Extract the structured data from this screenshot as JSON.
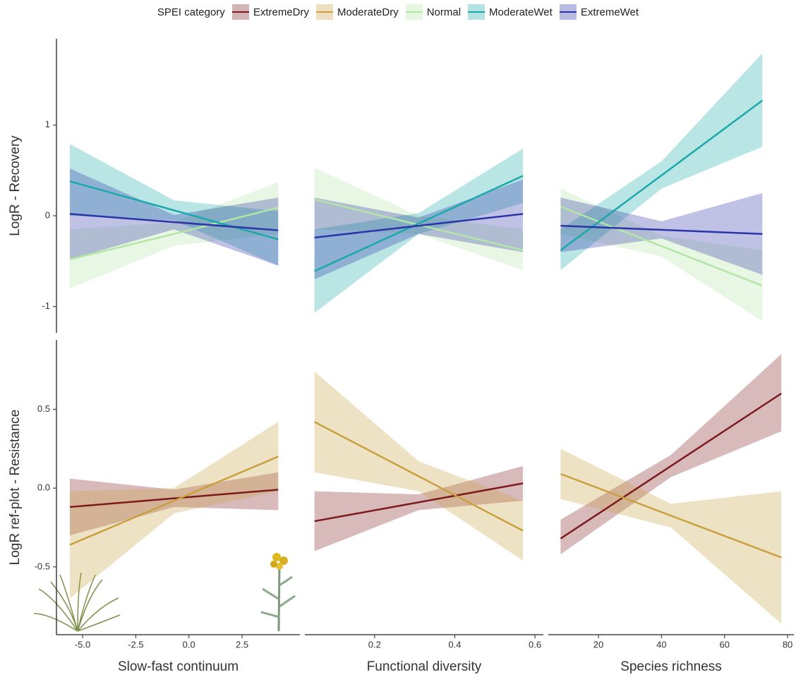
{
  "legend": {
    "title": "SPEI category"
  },
  "chart_data": [
    {
      "type": "line",
      "ylabel": "LogR - Recovery",
      "xlim": [
        -6.23,
        5.22
      ],
      "ylim": [
        -1.29,
        1.95
      ],
      "yticks": [
        -1,
        0,
        1
      ],
      "series": [
        {
          "name": "Normal",
          "color": "#b3e6a6",
          "x": [
            -5.6,
            -0.7,
            4.2
          ],
          "values": [
            -0.48,
            -0.2,
            0.09
          ],
          "lower": [
            -0.8,
            -0.33,
            -0.2
          ],
          "upper": [
            -0.15,
            -0.07,
            0.37
          ]
        },
        {
          "name": "ModerateWet",
          "color": "#1aa9a9",
          "x": [
            -5.6,
            -0.7,
            4.2
          ],
          "values": [
            0.38,
            0.06,
            -0.26
          ],
          "lower": [
            0.0,
            -0.05,
            -0.55
          ],
          "upper": [
            0.79,
            0.17,
            0.05
          ]
        },
        {
          "name": "ExtremeWet",
          "color": "#2b35a8",
          "x": [
            -5.6,
            -0.7,
            4.2
          ],
          "values": [
            0.02,
            -0.07,
            -0.16
          ],
          "lower": [
            -0.48,
            -0.15,
            -0.55
          ],
          "upper": [
            0.52,
            0.01,
            0.2
          ]
        }
      ]
    },
    {
      "type": "line",
      "xlim": [
        0.026,
        0.621
      ],
      "ylim": [
        -1.29,
        1.95
      ],
      "series": [
        {
          "name": "Normal",
          "color": "#b3e6a6",
          "x": [
            0.05,
            0.31,
            0.57
          ],
          "values": [
            0.18,
            -0.1,
            -0.38
          ],
          "lower": [
            -0.15,
            -0.2,
            -0.6
          ],
          "upper": [
            0.53,
            0.0,
            -0.15
          ]
        },
        {
          "name": "ModerateWet",
          "color": "#1aa9a9",
          "x": [
            0.05,
            0.31,
            0.57
          ],
          "values": [
            -0.61,
            -0.085,
            0.44
          ],
          "lower": [
            -1.07,
            -0.2,
            0.14
          ],
          "upper": [
            -0.15,
            0.03,
            0.74
          ]
        },
        {
          "name": "ExtremeWet",
          "color": "#2b35a8",
          "x": [
            0.05,
            0.31,
            0.57
          ],
          "values": [
            -0.24,
            -0.11,
            0.02
          ],
          "lower": [
            -0.7,
            -0.2,
            -0.4
          ],
          "upper": [
            0.2,
            -0.02,
            0.4
          ]
        }
      ]
    },
    {
      "type": "line",
      "xlim": [
        4.1,
        82
      ],
      "ylim": [
        -1.29,
        1.95
      ],
      "series": [
        {
          "name": "Normal",
          "color": "#b3e6a6",
          "x": [
            8,
            40,
            72
          ],
          "values": [
            0.1,
            -0.335,
            -0.77
          ],
          "lower": [
            -0.2,
            -0.45,
            -1.16
          ],
          "upper": [
            0.3,
            -0.22,
            -0.38
          ]
        },
        {
          "name": "ModerateWet",
          "color": "#1aa9a9",
          "x": [
            8,
            40,
            72
          ],
          "values": [
            -0.38,
            0.445,
            1.27
          ],
          "lower": [
            -0.6,
            0.3,
            0.76
          ],
          "upper": [
            -0.15,
            0.6,
            1.79
          ]
        },
        {
          "name": "ExtremeWet",
          "color": "#2b35a8",
          "x": [
            8,
            40,
            72
          ],
          "values": [
            -0.11,
            -0.155,
            -0.2
          ],
          "lower": [
            -0.4,
            -0.25,
            -0.65
          ],
          "upper": [
            0.2,
            -0.06,
            0.25
          ]
        }
      ]
    },
    {
      "type": "line",
      "ylabel": "LogR ref-plot - Resistance",
      "xlabel": "Slow-fast continuum",
      "xlim": [
        -6.23,
        5.22
      ],
      "ylim": [
        -0.93,
        0.94
      ],
      "xticks": [
        {
          "value": -5,
          "label": "-5.0"
        },
        -2.5,
        {
          "value": 0,
          "label": "0.0"
        },
        2.5
      ],
      "yticks": [
        -0.5,
        {
          "value": 0,
          "label": "0.0"
        },
        0.5
      ],
      "series": [
        {
          "name": "ExtremeDry",
          "color": "#7d1a1d",
          "x": [
            -5.6,
            -0.7,
            4.2
          ],
          "values": [
            -0.12,
            -0.065,
            -0.01
          ],
          "lower": [
            -0.3,
            -0.12,
            -0.14
          ],
          "upper": [
            0.06,
            -0.01,
            0.1
          ]
        },
        {
          "name": "ModerateDry",
          "color": "#c8a040",
          "x": [
            -5.6,
            -0.7,
            4.2
          ],
          "values": [
            -0.36,
            -0.08,
            0.2
          ],
          "lower": [
            -0.7,
            -0.16,
            -0.02
          ],
          "upper": [
            -0.02,
            0.0,
            0.42
          ]
        }
      ]
    },
    {
      "type": "line",
      "xlabel": "Functional diversity",
      "xlim": [
        0.026,
        0.621
      ],
      "ylim": [
        -0.93,
        0.94
      ],
      "xticks": [
        0.2,
        0.4,
        0.6
      ],
      "series": [
        {
          "name": "ExtremeDry",
          "color": "#7d1a1d",
          "x": [
            0.05,
            0.31,
            0.57
          ],
          "values": [
            -0.21,
            -0.09,
            0.03
          ],
          "lower": [
            -0.4,
            -0.14,
            -0.08
          ],
          "upper": [
            -0.02,
            -0.04,
            0.14
          ]
        },
        {
          "name": "ModerateDry",
          "color": "#c8a040",
          "x": [
            0.05,
            0.31,
            0.57
          ],
          "values": [
            0.42,
            0.075,
            -0.27
          ],
          "lower": [
            0.1,
            -0.02,
            -0.46
          ],
          "upper": [
            0.74,
            0.17,
            -0.08
          ]
        }
      ]
    },
    {
      "type": "line",
      "xlabel": "Species richness",
      "xlim": [
        4.1,
        82
      ],
      "ylim": [
        -0.93,
        0.94
      ],
      "xticks": [
        20,
        40,
        60,
        80
      ],
      "series": [
        {
          "name": "ExtremeDry",
          "color": "#7d1a1d",
          "x": [
            8,
            43,
            78
          ],
          "values": [
            -0.32,
            0.14,
            0.6
          ],
          "lower": [
            -0.42,
            0.07,
            0.36
          ],
          "upper": [
            -0.2,
            0.21,
            0.85
          ]
        },
        {
          "name": "ModerateDry",
          "color": "#c8a040",
          "x": [
            8,
            43,
            78
          ],
          "values": [
            0.09,
            -0.175,
            -0.44
          ],
          "lower": [
            -0.07,
            -0.25,
            -0.86
          ],
          "upper": [
            0.25,
            -0.1,
            -0.02
          ]
        }
      ]
    }
  ]
}
